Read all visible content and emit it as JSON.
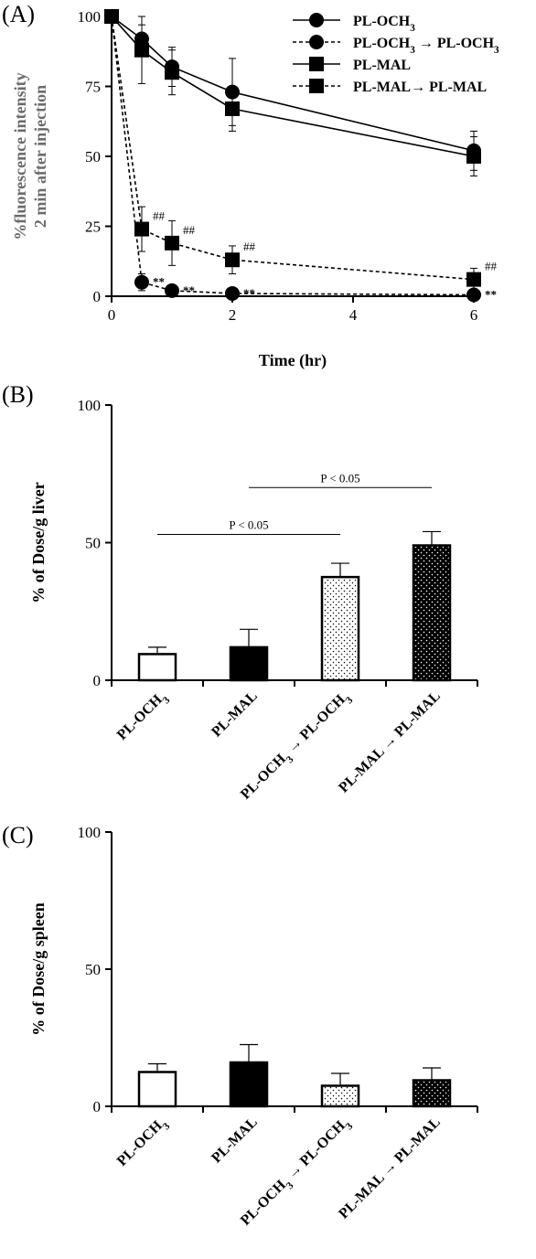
{
  "panels": {
    "a": {
      "letter": "(A)"
    },
    "b": {
      "letter": "(B)"
    },
    "c": {
      "letter": "(C)"
    }
  },
  "colors": {
    "ink": "#000000",
    "grey_title": "#6b6b6b",
    "background": "#ffffff"
  },
  "chart_data": [
    {
      "id": "A",
      "type": "line",
      "xlabel": "Time (hr)",
      "ylabel_lines": [
        "%fluorescence intensity",
        "2 min after injection"
      ],
      "xlim": [
        0,
        6
      ],
      "ylim": [
        0,
        100
      ],
      "xticks": [
        0,
        2,
        4,
        6
      ],
      "yticks": [
        0,
        25,
        50,
        75,
        100
      ],
      "legend_position": "top-right",
      "series": [
        {
          "key": "och3",
          "name_parts": [
            "PL-OCH",
            "3",
            ""
          ],
          "marker": "circle",
          "dash": false,
          "x": [
            0,
            0.5,
            1,
            2,
            6
          ],
          "y": [
            100,
            92,
            82,
            73,
            52
          ],
          "err": [
            0,
            5,
            7,
            12,
            7
          ],
          "annot": [
            "",
            "",
            "",
            "",
            ""
          ]
        },
        {
          "key": "och3_och3",
          "name_parts": [
            "PL-OCH",
            "3",
            " → PL-OCH",
            "3",
            ""
          ],
          "marker": "circle",
          "dash": true,
          "x": [
            0,
            0.5,
            1,
            2,
            6
          ],
          "y": [
            100,
            5,
            2,
            1,
            0.5
          ],
          "err": [
            0,
            3,
            1,
            1,
            1
          ],
          "annot": [
            "",
            "**",
            "**",
            "**",
            "**"
          ]
        },
        {
          "key": "mal",
          "name_parts": [
            "PL-MAL"
          ],
          "marker": "square",
          "dash": false,
          "x": [
            0,
            0.5,
            1,
            2,
            6
          ],
          "y": [
            100,
            88,
            80,
            67,
            50
          ],
          "err": [
            0,
            12,
            8,
            8,
            7
          ],
          "annot": [
            "",
            "",
            "",
            "",
            ""
          ]
        },
        {
          "key": "mal_mal",
          "name_parts": [
            "PL-MAL→ PL-MAL"
          ],
          "marker": "square",
          "dash": true,
          "x": [
            0,
            0.5,
            1,
            2,
            6
          ],
          "y": [
            100,
            24,
            19,
            13,
            6
          ],
          "err": [
            0,
            8,
            8,
            5,
            4
          ],
          "annot": [
            "",
            "##",
            "##",
            "##",
            "##"
          ]
        }
      ]
    },
    {
      "id": "B",
      "type": "bar",
      "ylabel": "% of Dose/g liver",
      "ylim": [
        0,
        100
      ],
      "yticks": [
        0,
        50,
        100
      ],
      "categories": [
        {
          "parts": [
            "PL-OCH",
            "3",
            ""
          ],
          "fill": "white"
        },
        {
          "parts": [
            "PL-MAL"
          ],
          "fill": "black"
        },
        {
          "parts": [
            "PL-OCH",
            "3",
            " → PL-OCH",
            "3",
            ""
          ],
          "fill": "light-dots"
        },
        {
          "parts": [
            "PL-MAL → PL-MAL"
          ],
          "fill": "dark-dots"
        }
      ],
      "values": [
        9.5,
        12,
        37.5,
        49
      ],
      "errors": [
        2.5,
        6.5,
        5,
        5
      ],
      "comparisons": [
        {
          "from": 0,
          "to": 2,
          "label": "P < 0.05",
          "y": 53
        },
        {
          "from": 1,
          "to": 3,
          "label": "P < 0.05",
          "y": 70
        }
      ]
    },
    {
      "id": "C",
      "type": "bar",
      "ylabel": "% of Dose/g spleen",
      "ylim": [
        0,
        100
      ],
      "yticks": [
        0,
        50,
        100
      ],
      "categories": [
        {
          "parts": [
            "PL-OCH",
            "3",
            ""
          ],
          "fill": "white"
        },
        {
          "parts": [
            "PL-MAL"
          ],
          "fill": "black"
        },
        {
          "parts": [
            "PL-OCH",
            "3",
            " → PL-OCH",
            "3",
            ""
          ],
          "fill": "light-dots"
        },
        {
          "parts": [
            "PL-MAL → PL-MAL"
          ],
          "fill": "dark-dots"
        }
      ],
      "values": [
        12.5,
        16,
        7.5,
        9.5
      ],
      "errors": [
        3,
        6.5,
        4.5,
        4.5
      ],
      "comparisons": []
    }
  ]
}
